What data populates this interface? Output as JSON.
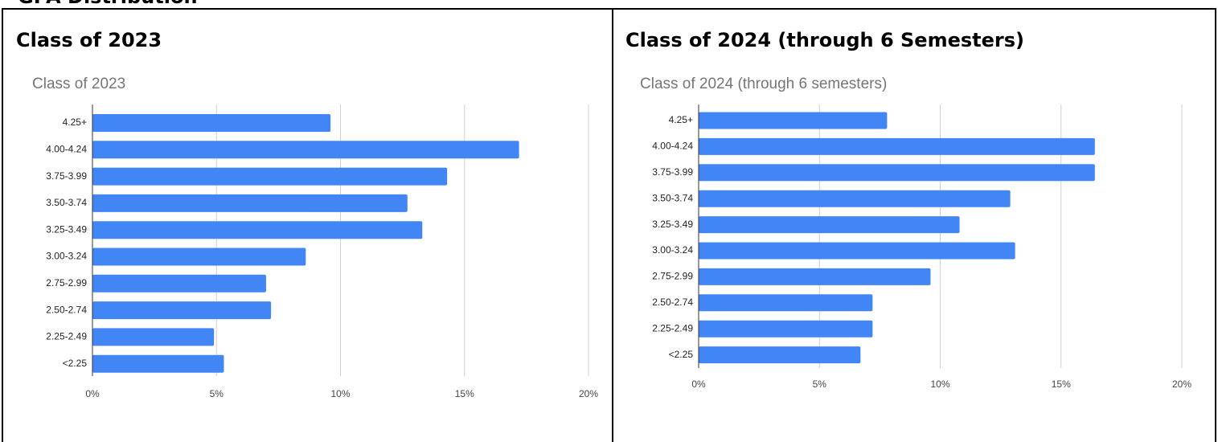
{
  "page_title": "GPA Distribution",
  "panels": [
    {
      "heading": "Class of 2023"
    },
    {
      "heading": "Class of 2024 (through 6 Semesters)"
    }
  ],
  "chart_data": [
    {
      "type": "bar",
      "orientation": "horizontal",
      "title": "Class of 2023",
      "categories": [
        "4.25+",
        "4.00-4.24",
        "3.75-3.99",
        "3.50-3.74",
        "3.25-3.49",
        "3.00-3.24",
        "2.75-2.99",
        "2.50-2.74",
        "2.25-2.49",
        "<2.25"
      ],
      "values": [
        9.6,
        17.2,
        14.3,
        12.7,
        13.3,
        8.6,
        7.0,
        7.2,
        4.9,
        5.3
      ],
      "color": "#4285f4",
      "xlim": [
        0,
        20
      ],
      "xticks": [
        {
          "value": 0,
          "label": "0%"
        },
        {
          "value": 5,
          "label": "5%"
        },
        {
          "value": 10,
          "label": "10%"
        },
        {
          "value": 15,
          "label": "15%"
        },
        {
          "value": 20,
          "label": "20%"
        }
      ],
      "grid": true
    },
    {
      "type": "bar",
      "orientation": "horizontal",
      "title": "Class of 2024 (through 6 semesters)",
      "categories": [
        "4.25+",
        "4.00-4.24",
        "3.75-3.99",
        "3.50-3.74",
        "3.25-3.49",
        "3.00-3.24",
        "2.75-2.99",
        "2.50-2.74",
        "2.25-2.49",
        "<2.25"
      ],
      "values": [
        7.8,
        16.4,
        16.4,
        12.9,
        10.8,
        13.1,
        9.6,
        7.2,
        7.2,
        6.7
      ],
      "color": "#4285f4",
      "xlim": [
        0,
        20
      ],
      "xticks": [
        {
          "value": 0,
          "label": "0%"
        },
        {
          "value": 5,
          "label": "5%"
        },
        {
          "value": 10,
          "label": "10%"
        },
        {
          "value": 15,
          "label": "15%"
        },
        {
          "value": 20,
          "label": "20%"
        }
      ],
      "grid": true
    }
  ]
}
